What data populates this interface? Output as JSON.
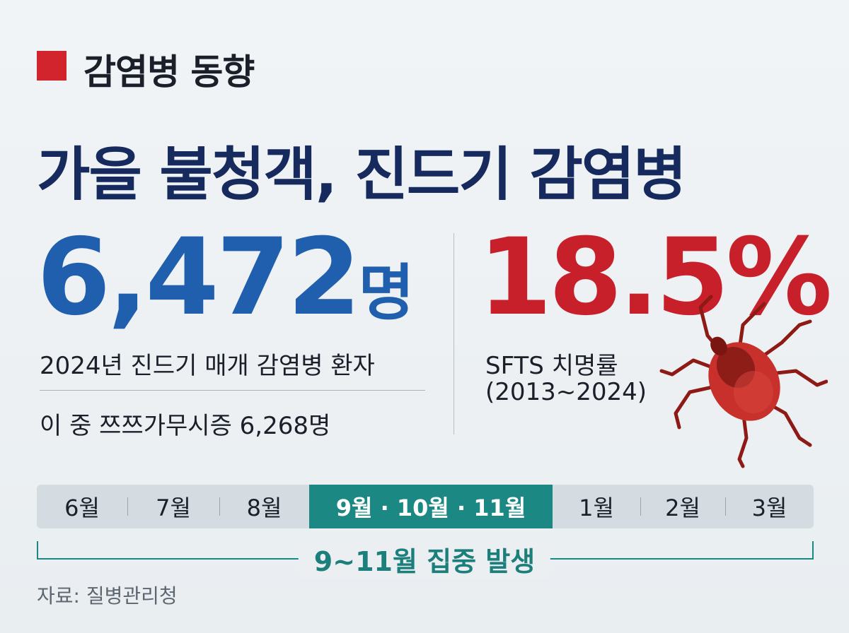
{
  "header": {
    "tag": "감염병 동향",
    "title": "가을 불청객, 진드기 감염병"
  },
  "left": {
    "number": "6,472",
    "unit": "명",
    "caption": "2024년 진드기 매개 감염병 환자",
    "sub": "이 중 쯔쯔가무시증 6,268명"
  },
  "right": {
    "number": "18.5%",
    "caption": "SFTS 치명률",
    "period": "(2013~2024)"
  },
  "timeline": {
    "months": [
      "6월",
      "7월",
      "8월",
      "9월 · 10월 · 11월",
      "1월",
      "2월",
      "3월"
    ],
    "note": "9~11월 집중 발생"
  },
  "source": "자료: 질병관리청"
}
